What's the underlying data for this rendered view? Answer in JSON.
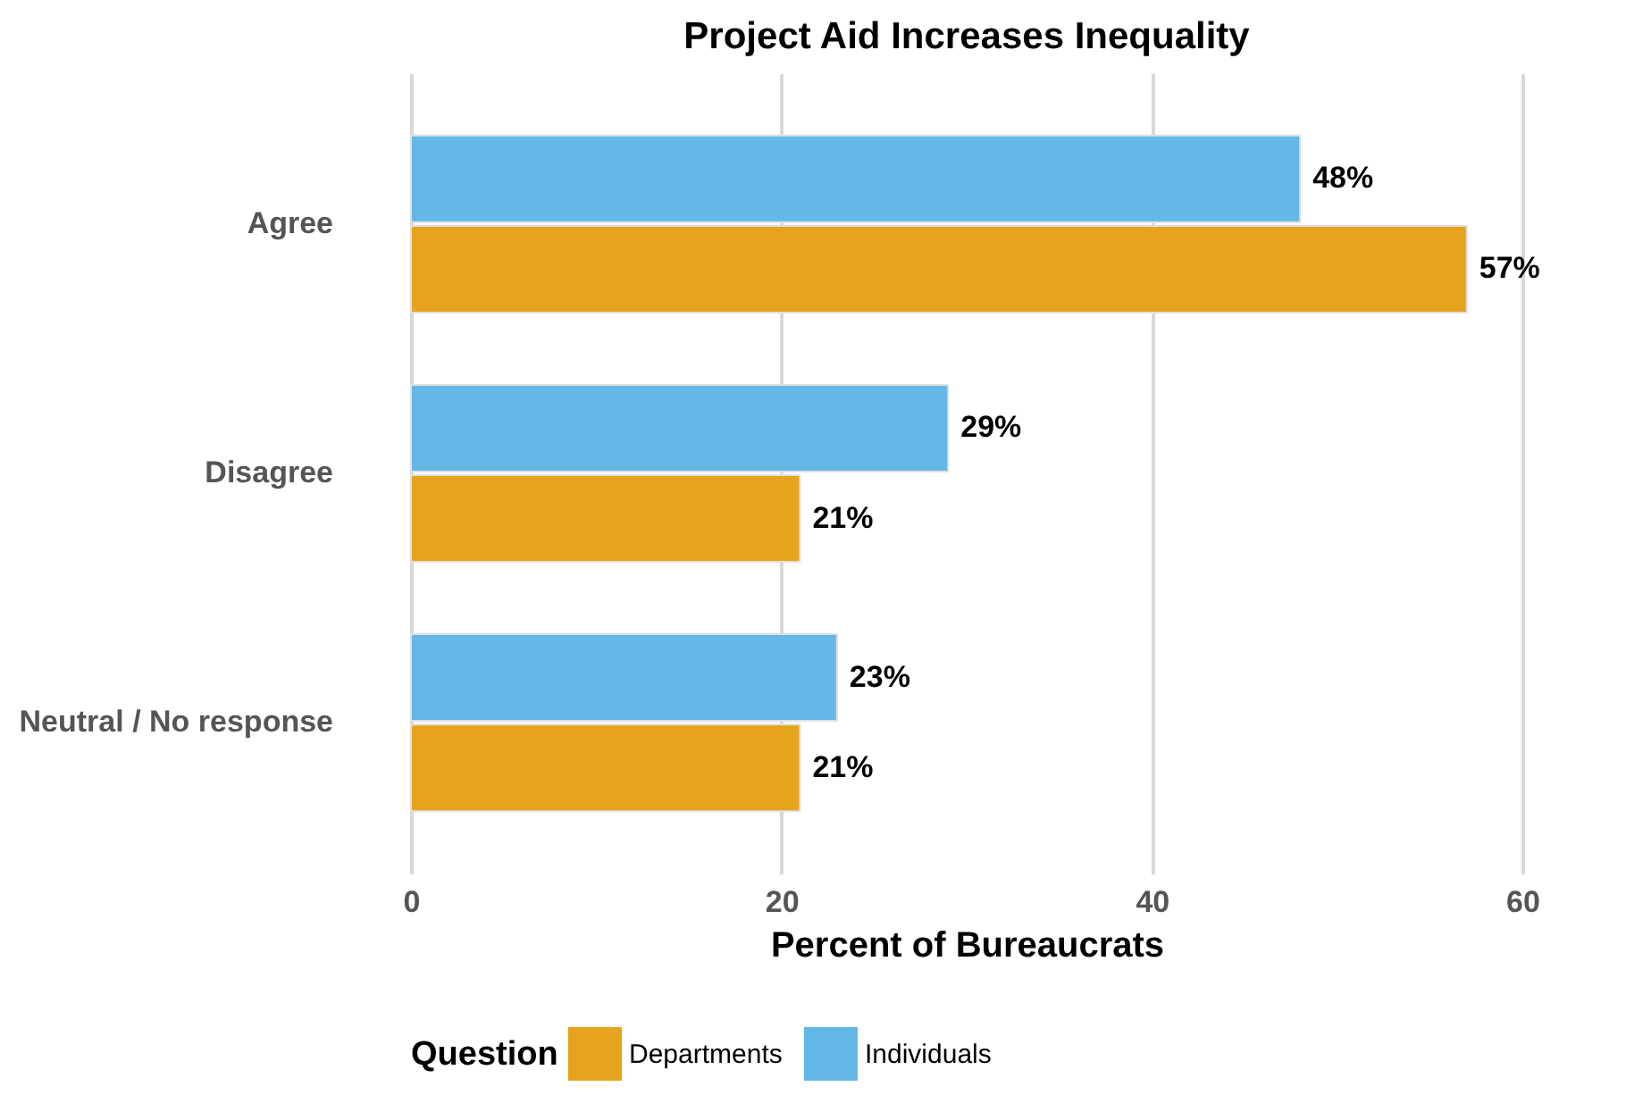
{
  "chart_data": {
    "type": "bar",
    "orientation": "horizontal",
    "title": "Project Aid Increases Inequality",
    "xlabel": "Percent of Bureaucrats",
    "legend_title": "Question",
    "categories": [
      "Agree",
      "Disagree",
      "Neutral / No response"
    ],
    "series": [
      {
        "name": "Departments",
        "color": "#e6a31c",
        "values": [
          57,
          21,
          21
        ],
        "value_labels": [
          "57%",
          "21%",
          "21%"
        ]
      },
      {
        "name": "Individuals",
        "color": "#63b8e8",
        "values": [
          48,
          29,
          23
        ],
        "value_labels": [
          "48%",
          "29%",
          "23%"
        ]
      }
    ],
    "xlim": [
      0,
      60
    ],
    "xticks": [
      0,
      20,
      40,
      60
    ],
    "grid": "x",
    "legend": "bottom"
  }
}
